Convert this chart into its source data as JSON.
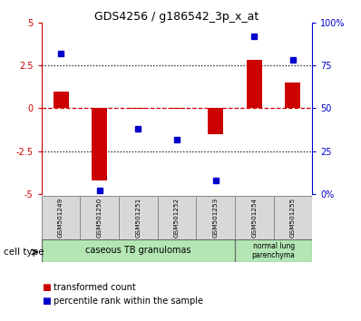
{
  "title": "GDS4256 / g186542_3p_x_at",
  "samples": [
    "GSM501249",
    "GSM501250",
    "GSM501251",
    "GSM501252",
    "GSM501253",
    "GSM501254",
    "GSM501255"
  ],
  "transformed_count": [
    1.0,
    -4.2,
    -0.05,
    -0.05,
    -1.5,
    2.8,
    1.5
  ],
  "percentile_rank": [
    82,
    2,
    38,
    32,
    8,
    92,
    78
  ],
  "ylim_left": [
    -5,
    5
  ],
  "ylim_right": [
    0,
    100
  ],
  "yticks_left": [
    -5,
    -2.5,
    0,
    2.5,
    5
  ],
  "yticks_right": [
    0,
    25,
    50,
    75,
    100
  ],
  "ytick_labels_left": [
    "-5",
    "-2.5",
    "0",
    "2.5",
    "5"
  ],
  "ytick_labels_right": [
    "0%",
    "25",
    "50",
    "75",
    "100%"
  ],
  "bar_color": "#cc0000",
  "dot_color": "#0000cc",
  "bar_width": 0.4,
  "hline_color": "#cc0000",
  "dotted_line_color": "#000000",
  "legend_bar_label": "transformed count",
  "legend_dot_label": "percentile rank within the sample",
  "cell_type_label": "cell type",
  "ct1_label": "caseous TB granulomas",
  "ct2_label": "normal lung\nparenchyma",
  "cell_bg": "#b3e6b3",
  "sample_bg": "#d8d8d8"
}
